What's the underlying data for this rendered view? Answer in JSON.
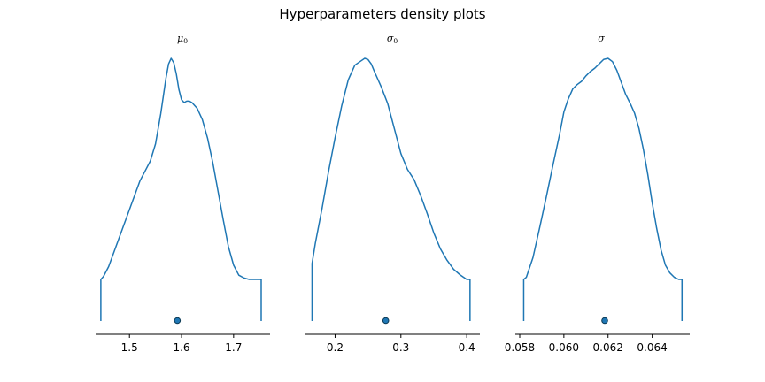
{
  "figure": {
    "title": "Hyperparameters density plots"
  },
  "chart_data": [
    {
      "type": "line",
      "title": "μ0",
      "title_base": "μ",
      "title_sub": "0",
      "xlim": [
        1.435,
        1.77
      ],
      "ticks": [
        1.5,
        1.6,
        1.7
      ],
      "tick_labels": [
        "1.5",
        "1.6",
        "1.7"
      ],
      "point_estimate": 1.592,
      "density_x": [
        1.445,
        1.45,
        1.46,
        1.47,
        1.48,
        1.49,
        1.5,
        1.51,
        1.52,
        1.53,
        1.54,
        1.55,
        1.56,
        1.57,
        1.575,
        1.58,
        1.585,
        1.59,
        1.595,
        1.6,
        1.605,
        1.61,
        1.615,
        1.62,
        1.63,
        1.64,
        1.65,
        1.66,
        1.67,
        1.68,
        1.69,
        1.7,
        1.71,
        1.72,
        1.73,
        1.74,
        1.75,
        1.753
      ],
      "density_y": [
        0.0,
        0.02,
        0.09,
        0.19,
        0.29,
        0.39,
        0.49,
        0.59,
        0.69,
        0.76,
        0.83,
        0.95,
        1.16,
        1.41,
        1.51,
        1.55,
        1.52,
        1.44,
        1.33,
        1.26,
        1.24,
        1.25,
        1.25,
        1.24,
        1.2,
        1.12,
        0.99,
        0.82,
        0.62,
        0.42,
        0.23,
        0.1,
        0.03,
        0.01,
        0.0,
        0.0,
        0.0,
        0.0
      ]
    },
    {
      "type": "line",
      "title": "σ0",
      "title_base": "σ",
      "title_sub": "0",
      "xlim": [
        0.155,
        0.42
      ],
      "ticks": [
        0.2,
        0.3,
        0.4
      ],
      "tick_labels": [
        "0.2",
        "0.3",
        "0.4"
      ],
      "point_estimate": 0.277,
      "density_x": [
        0.165,
        0.17,
        0.18,
        0.19,
        0.2,
        0.21,
        0.22,
        0.23,
        0.24,
        0.245,
        0.25,
        0.255,
        0.26,
        0.27,
        0.28,
        0.29,
        0.3,
        0.31,
        0.32,
        0.33,
        0.34,
        0.35,
        0.36,
        0.37,
        0.38,
        0.39,
        0.4,
        0.405
      ],
      "density_y": [
        0.14,
        0.32,
        0.62,
        0.95,
        1.25,
        1.53,
        1.76,
        1.89,
        1.93,
        1.95,
        1.94,
        1.9,
        1.83,
        1.7,
        1.55,
        1.33,
        1.11,
        0.97,
        0.88,
        0.74,
        0.58,
        0.41,
        0.27,
        0.17,
        0.09,
        0.04,
        0.0,
        0.0
      ]
    },
    {
      "type": "line",
      "title": "σ",
      "title_base": "σ",
      "title_sub": "",
      "xlim": [
        0.0578,
        0.0657
      ],
      "ticks": [
        0.058,
        0.06,
        0.062,
        0.064
      ],
      "tick_labels": [
        "0.058",
        "0.060",
        "0.062",
        "0.064"
      ],
      "point_estimate": 0.06185,
      "density_x": [
        0.05818,
        0.0583,
        0.0586,
        0.0589,
        0.0592,
        0.0595,
        0.0598,
        0.06,
        0.0602,
        0.0604,
        0.0606,
        0.0608,
        0.061,
        0.0612,
        0.0614,
        0.0616,
        0.0618,
        0.062,
        0.0622,
        0.0624,
        0.0626,
        0.0628,
        0.063,
        0.0632,
        0.0634,
        0.0636,
        0.0638,
        0.064,
        0.0642,
        0.0644,
        0.0646,
        0.0648,
        0.065,
        0.0652,
        0.06535
      ],
      "density_y": [
        0.0,
        0.02,
        0.2,
        0.47,
        0.75,
        1.04,
        1.32,
        1.53,
        1.65,
        1.74,
        1.78,
        1.81,
        1.86,
        1.9,
        1.93,
        1.97,
        2.01,
        2.02,
        1.99,
        1.91,
        1.8,
        1.69,
        1.61,
        1.52,
        1.38,
        1.19,
        0.96,
        0.7,
        0.47,
        0.27,
        0.13,
        0.06,
        0.02,
        0.0,
        0.0
      ]
    }
  ],
  "colors": {
    "line": "#1f77b4",
    "point": "#1f77b4",
    "point_edge": "#0b3954",
    "axis": "#000000"
  }
}
